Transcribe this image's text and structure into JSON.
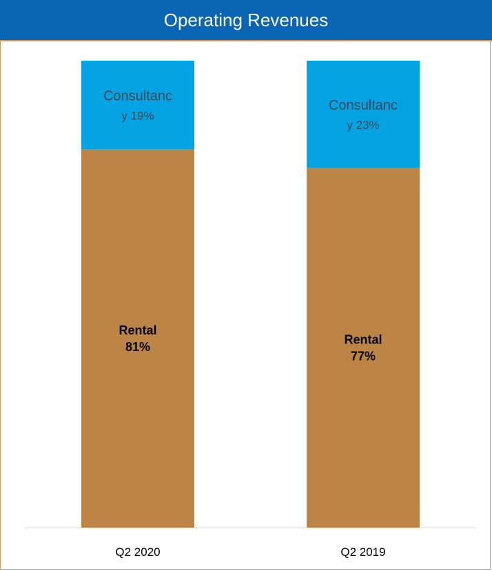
{
  "chart_data": {
    "type": "bar",
    "stacked": true,
    "title": "Operating Revenues",
    "categories": [
      "Q2 2020",
      "Q2 2019"
    ],
    "series": [
      {
        "name": "Rental",
        "values": [
          81,
          77
        ],
        "labels": [
          [
            "Rental",
            "81%"
          ],
          [
            "Rental",
            "77%"
          ]
        ],
        "color": "#bc8546"
      },
      {
        "name": "Consultancy",
        "values": [
          19,
          23
        ],
        "labels": [
          [
            "Consultanc",
            "y 19%"
          ],
          [
            "Consultanc",
            "y 23%"
          ]
        ],
        "color": "#03a3e3"
      }
    ],
    "ylim": [
      0,
      100
    ],
    "grid": false,
    "legend": "none"
  },
  "colors": {
    "title_bar": "#0a65b4",
    "frame_border": "#c9975a",
    "axis_line": "#d9d9d9"
  }
}
